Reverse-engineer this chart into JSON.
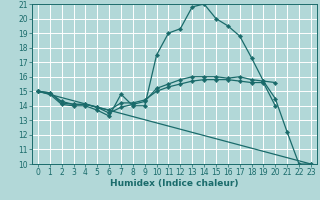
{
  "xlabel": "Humidex (Indice chaleur)",
  "xlim": [
    -0.5,
    23.5
  ],
  "ylim": [
    10,
    21
  ],
  "yticks": [
    10,
    11,
    12,
    13,
    14,
    15,
    16,
    17,
    18,
    19,
    20,
    21
  ],
  "xticks": [
    0,
    1,
    2,
    3,
    4,
    5,
    6,
    7,
    8,
    9,
    10,
    11,
    12,
    13,
    14,
    15,
    16,
    17,
    18,
    19,
    20,
    21,
    22,
    23
  ],
  "bg_color": "#b2d8d8",
  "grid_color": "#ffffff",
  "line_color": "#1a6b6b",
  "lines": [
    {
      "x": [
        0,
        1,
        2,
        3,
        4,
        5,
        6,
        7,
        8,
        9,
        10,
        11,
        12,
        13,
        14,
        15,
        16,
        17,
        18,
        19,
        20,
        21,
        22,
        23
      ],
      "y": [
        15,
        14.8,
        14.1,
        14.0,
        14.0,
        13.7,
        13.3,
        14.8,
        14.0,
        14.0,
        17.5,
        19.0,
        19.3,
        20.8,
        21.0,
        20.0,
        19.5,
        18.8,
        17.3,
        15.7,
        14.5,
        12.2,
        10.0,
        10.0
      ]
    },
    {
      "x": [
        0,
        1,
        2,
        3,
        4,
        5,
        6,
        7,
        8,
        9,
        10,
        11,
        12,
        13,
        14,
        15,
        16,
        17,
        18,
        19,
        20
      ],
      "y": [
        15,
        14.9,
        14.3,
        14.1,
        14.1,
        13.9,
        13.7,
        14.2,
        14.2,
        14.4,
        15.0,
        15.3,
        15.5,
        15.7,
        15.8,
        15.8,
        15.8,
        15.7,
        15.6,
        15.6,
        14.0
      ]
    },
    {
      "x": [
        0,
        1,
        2,
        3,
        4,
        5,
        6,
        7,
        8,
        9,
        10,
        11,
        12,
        13,
        14,
        15,
        16,
        17,
        18,
        19,
        20
      ],
      "y": [
        15,
        14.9,
        14.2,
        14.1,
        14.1,
        13.9,
        13.5,
        13.9,
        14.1,
        14.3,
        15.2,
        15.5,
        15.8,
        16.0,
        16.0,
        16.0,
        15.9,
        16.0,
        15.8,
        15.7,
        15.6
      ]
    },
    {
      "x": [
        0,
        23
      ],
      "y": [
        15,
        10
      ]
    }
  ],
  "axis_fontsize": 6.5,
  "tick_fontsize": 5.5,
  "marker": "D",
  "markersize": 2.2,
  "linewidth": 0.9
}
